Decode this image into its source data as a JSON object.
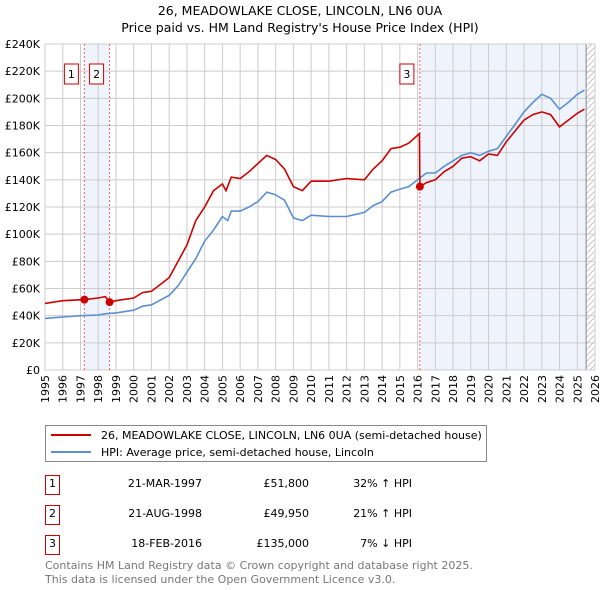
{
  "title": "26, MEADOWLAKE CLOSE, LINCOLN, LN6 0UA",
  "subtitle": "Price paid vs. HM Land Registry's House Price Index (HPI)",
  "colors": {
    "property": "#cc0000",
    "hpi": "#5b8fd0",
    "shade": "#eef3fc",
    "marker_border": "#cc0000"
  },
  "chart_data": {
    "type": "line",
    "xlim": [
      1995,
      2026
    ],
    "ylim": [
      0,
      240000
    ],
    "yticks": [
      0,
      20000,
      40000,
      60000,
      80000,
      100000,
      120000,
      140000,
      160000,
      180000,
      200000,
      220000,
      240000
    ],
    "ytick_labels": [
      "£0",
      "£20K",
      "£40K",
      "£60K",
      "£80K",
      "£100K",
      "£120K",
      "£140K",
      "£160K",
      "£180K",
      "£200K",
      "£220K",
      "£240K"
    ],
    "xticks": [
      1995,
      1996,
      1997,
      1998,
      1999,
      2000,
      2001,
      2002,
      2003,
      2004,
      2005,
      2006,
      2007,
      2008,
      2009,
      2010,
      2011,
      2012,
      2013,
      2014,
      2015,
      2016,
      2017,
      2018,
      2019,
      2020,
      2021,
      2022,
      2023,
      2024,
      2025,
      2026
    ],
    "grid": true,
    "series": [
      {
        "name": "26, MEADOWLAKE CLOSE, LINCOLN, LN6 0UA (semi-detached house)",
        "x": [
          1995,
          1996,
          1997.22,
          1998,
          1998.4,
          1998.64,
          1999,
          2000,
          2000.5,
          2001,
          2002,
          2002.5,
          2003,
          2003.5,
          2004,
          2004.5,
          2005,
          2005.2,
          2005.5,
          2006,
          2006.5,
          2007,
          2007.5,
          2008,
          2008.5,
          2009,
          2009.5,
          2010,
          2011,
          2012,
          2013,
          2013.5,
          2014,
          2014.5,
          2015,
          2015.5,
          2016.1,
          2016.13,
          2016.5,
          2017,
          2017.5,
          2018,
          2018.5,
          2019,
          2019.5,
          2020,
          2020.5,
          2021,
          2021.5,
          2022,
          2022.5,
          2023,
          2023.5,
          2024,
          2024.5,
          2025,
          2025.4
        ],
        "y": [
          49000,
          51000,
          51800,
          53000,
          54000,
          49950,
          51000,
          53000,
          57000,
          58000,
          68000,
          80000,
          92000,
          110000,
          120000,
          132000,
          137000,
          132000,
          142000,
          141000,
          146000,
          152000,
          158000,
          155000,
          148000,
          135000,
          132000,
          139000,
          139000,
          141000,
          140000,
          148000,
          154000,
          163000,
          164000,
          167000,
          174000,
          135000,
          138000,
          140000,
          146000,
          150000,
          156000,
          157000,
          154000,
          159000,
          158000,
          168000,
          176000,
          184000,
          188000,
          190000,
          188000,
          179000,
          184000,
          189000,
          192000
        ]
      },
      {
        "name": "HPI: Average price, semi-detached house, Lincoln",
        "x": [
          1995,
          1996,
          1997,
          1998,
          1998.5,
          1999,
          2000,
          2000.5,
          2001,
          2002,
          2002.5,
          2003,
          2003.5,
          2004,
          2004.5,
          2005,
          2005.3,
          2005.5,
          2006,
          2006.5,
          2007,
          2007.5,
          2008,
          2008.5,
          2009,
          2009.5,
          2010,
          2011,
          2012,
          2013,
          2013.5,
          2014,
          2014.5,
          2015,
          2015.5,
          2016,
          2016.5,
          2017,
          2017.5,
          2018,
          2018.5,
          2019,
          2019.5,
          2020,
          2020.5,
          2021,
          2021.5,
          2022,
          2022.5,
          2023,
          2023.5,
          2024,
          2024.5,
          2025,
          2025.4
        ],
        "y": [
          38000,
          39000,
          40000,
          40500,
          41500,
          42000,
          44000,
          47000,
          48000,
          55000,
          62000,
          72000,
          82000,
          95000,
          103000,
          113000,
          110000,
          117000,
          117000,
          120000,
          124000,
          131000,
          129000,
          125000,
          112000,
          110000,
          114000,
          113000,
          113000,
          116000,
          121000,
          124000,
          131000,
          133000,
          135000,
          140000,
          145000,
          145000,
          150000,
          154000,
          158000,
          160000,
          158000,
          161000,
          163000,
          172000,
          181000,
          190000,
          197000,
          203000,
          200000,
          192000,
          197000,
          203000,
          206000
        ]
      }
    ],
    "shaded_ranges": [
      [
        1997.22,
        1998.64
      ],
      [
        2016.13,
        2025.5
      ]
    ],
    "hatched_from": 2025.5,
    "sales": [
      {
        "label": "1",
        "x": 1997.22,
        "y": 51800
      },
      {
        "label": "2",
        "x": 1998.64,
        "y": 49950
      },
      {
        "label": "3",
        "x": 2016.13,
        "y": 135000
      }
    ]
  },
  "legend": {
    "property": "26, MEADOWLAKE CLOSE, LINCOLN, LN6 0UA (semi-detached house)",
    "hpi": "HPI: Average price, semi-detached house, Lincoln"
  },
  "transactions": [
    {
      "num": "1",
      "date": "21-MAR-1997",
      "price": "£51,800",
      "hpi": "32% ↑ HPI"
    },
    {
      "num": "2",
      "date": "21-AUG-1998",
      "price": "£49,950",
      "hpi": "21% ↑ HPI"
    },
    {
      "num": "3",
      "date": "18-FEB-2016",
      "price": "£135,000",
      "hpi": "7% ↓ HPI"
    }
  ],
  "footer": {
    "line1": "Contains HM Land Registry data © Crown copyright and database right 2025.",
    "line2": "This data is licensed under the Open Government Licence v3.0."
  }
}
